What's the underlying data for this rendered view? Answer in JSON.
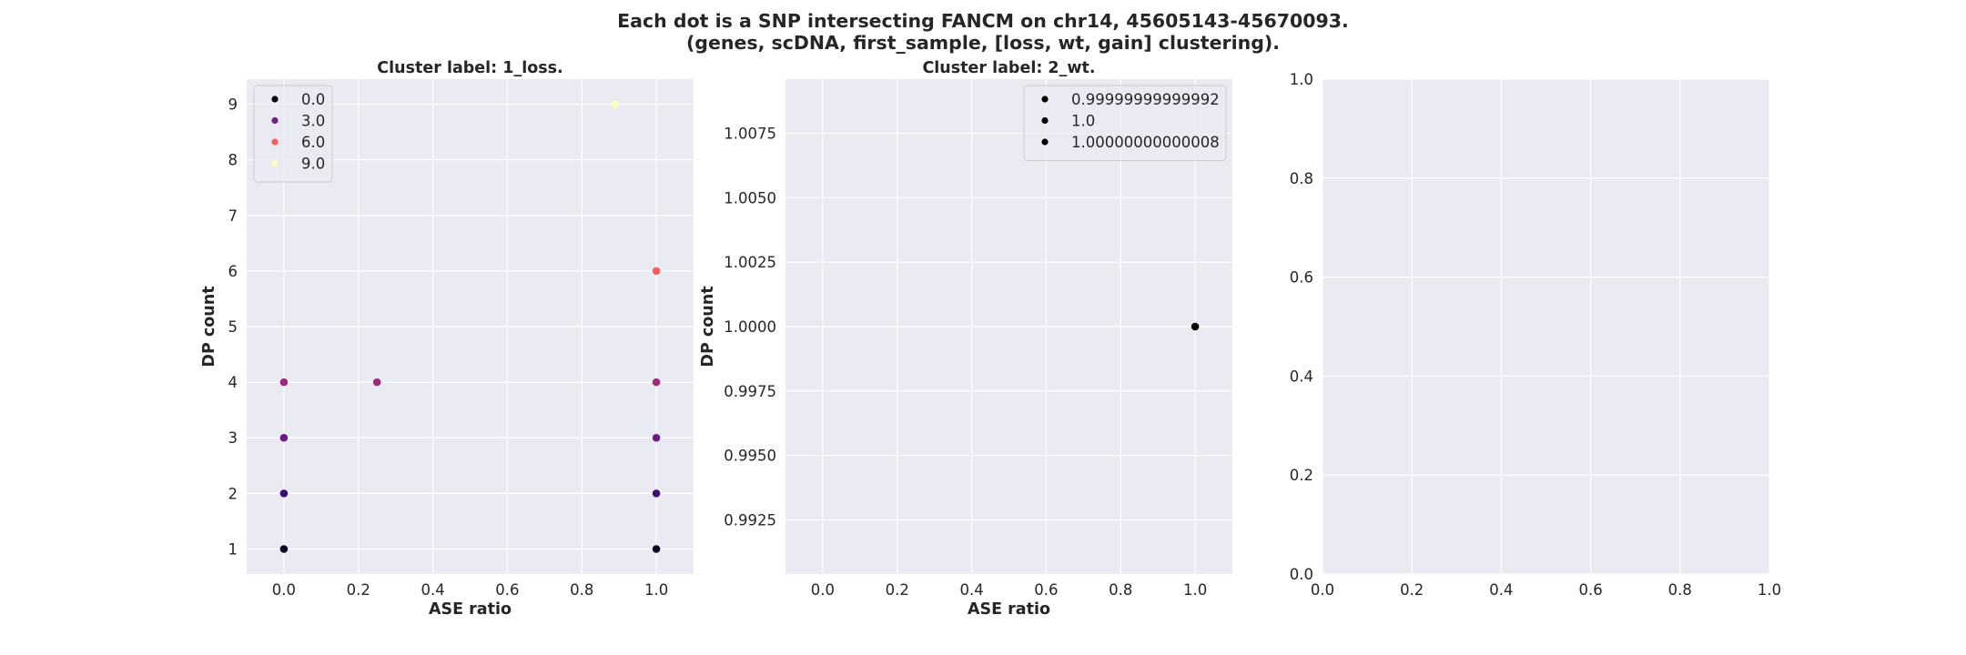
{
  "title_line1": "Each dot is a SNP intersecting FANCM on chr14, 45605143-45670093.",
  "title_line2": "(genes, scDNA, first_sample, [loss, wt, gain] clustering).",
  "chart_data": [
    {
      "type": "scatter",
      "title": "Cluster label: 1_loss.",
      "xlabel": "ASE ratio",
      "ylabel": "DP count",
      "xlim": [
        -0.1,
        1.1
      ],
      "ylim": [
        0.55,
        9.45
      ],
      "xticks": [
        0.0,
        0.2,
        0.4,
        0.6,
        0.8,
        1.0
      ],
      "xtick_labels": [
        "0.0",
        "0.2",
        "0.4",
        "0.6",
        "0.8",
        "1.0"
      ],
      "yticks": [
        1,
        2,
        3,
        4,
        5,
        6,
        7,
        8,
        9
      ],
      "ytick_labels": [
        "1",
        "2",
        "3",
        "4",
        "5",
        "6",
        "7",
        "8",
        "9"
      ],
      "grid": true,
      "legend_placement": "top-left",
      "legend": [
        {
          "label": "0.0",
          "color": "#000004"
        },
        {
          "label": "3.0",
          "color": "#721f81"
        },
        {
          "label": "6.0",
          "color": "#f1605d"
        },
        {
          "label": "9.0",
          "color": "#fcfdbf"
        }
      ],
      "points": [
        {
          "x": 0.0,
          "y": 1,
          "color": "#0b0924"
        },
        {
          "x": 0.0,
          "y": 2,
          "color": "#3b0f70"
        },
        {
          "x": 0.0,
          "y": 3,
          "color": "#6a1c81"
        },
        {
          "x": 0.0,
          "y": 4,
          "color": "#9a2b7f"
        },
        {
          "x": 0.25,
          "y": 4,
          "color": "#9a2b7f"
        },
        {
          "x": 0.889,
          "y": 9,
          "color": "#fcfdbf"
        },
        {
          "x": 1.0,
          "y": 6,
          "color": "#f1605d"
        },
        {
          "x": 1.0,
          "y": 4,
          "color": "#9a2b7f"
        },
        {
          "x": 1.0,
          "y": 3,
          "color": "#6a1c81"
        },
        {
          "x": 1.0,
          "y": 2,
          "color": "#3b0f70"
        },
        {
          "x": 1.0,
          "y": 1,
          "color": "#0b0924"
        }
      ]
    },
    {
      "type": "scatter",
      "title": "Cluster label: 2_wt.",
      "xlabel": "ASE ratio",
      "ylabel": "DP count",
      "xlim": [
        -0.1,
        1.1
      ],
      "ylim": [
        0.9904,
        1.0096
      ],
      "xticks": [
        0.0,
        0.2,
        0.4,
        0.6,
        0.8,
        1.0
      ],
      "xtick_labels": [
        "0.0",
        "0.2",
        "0.4",
        "0.6",
        "0.8",
        "1.0"
      ],
      "yticks": [
        0.9925,
        0.995,
        0.9975,
        1.0,
        1.0025,
        1.005,
        1.0075
      ],
      "ytick_labels": [
        "0.9925",
        "0.9950",
        "0.9975",
        "1.0000",
        "1.0025",
        "1.0050",
        "1.0075"
      ],
      "grid": true,
      "legend_placement": "top-right",
      "legend": [
        {
          "label": "0.99999999999992",
          "color": "#000000"
        },
        {
          "label": "1.0",
          "color": "#000000"
        },
        {
          "label": "1.00000000000008",
          "color": "#000000"
        }
      ],
      "points": [
        {
          "x": 1.0,
          "y": 1.0,
          "color": "#000000"
        }
      ]
    },
    {
      "type": "scatter",
      "title": "",
      "xlabel": "",
      "ylabel": "",
      "xlim": [
        0.0,
        1.0
      ],
      "ylim": [
        0.0,
        1.0
      ],
      "xticks": [
        0.0,
        0.2,
        0.4,
        0.6,
        0.8,
        1.0
      ],
      "xtick_labels": [
        "0.0",
        "0.2",
        "0.4",
        "0.6",
        "0.8",
        "1.0"
      ],
      "yticks": [
        0.0,
        0.2,
        0.4,
        0.6,
        0.8,
        1.0
      ],
      "ytick_labels": [
        "0.0",
        "0.2",
        "0.4",
        "0.6",
        "0.8",
        "1.0"
      ],
      "grid": true,
      "legend": [],
      "points": []
    }
  ],
  "colors": {
    "axes_background": "#eaeaf2",
    "grid": "#ffffff",
    "text": "#262626"
  }
}
